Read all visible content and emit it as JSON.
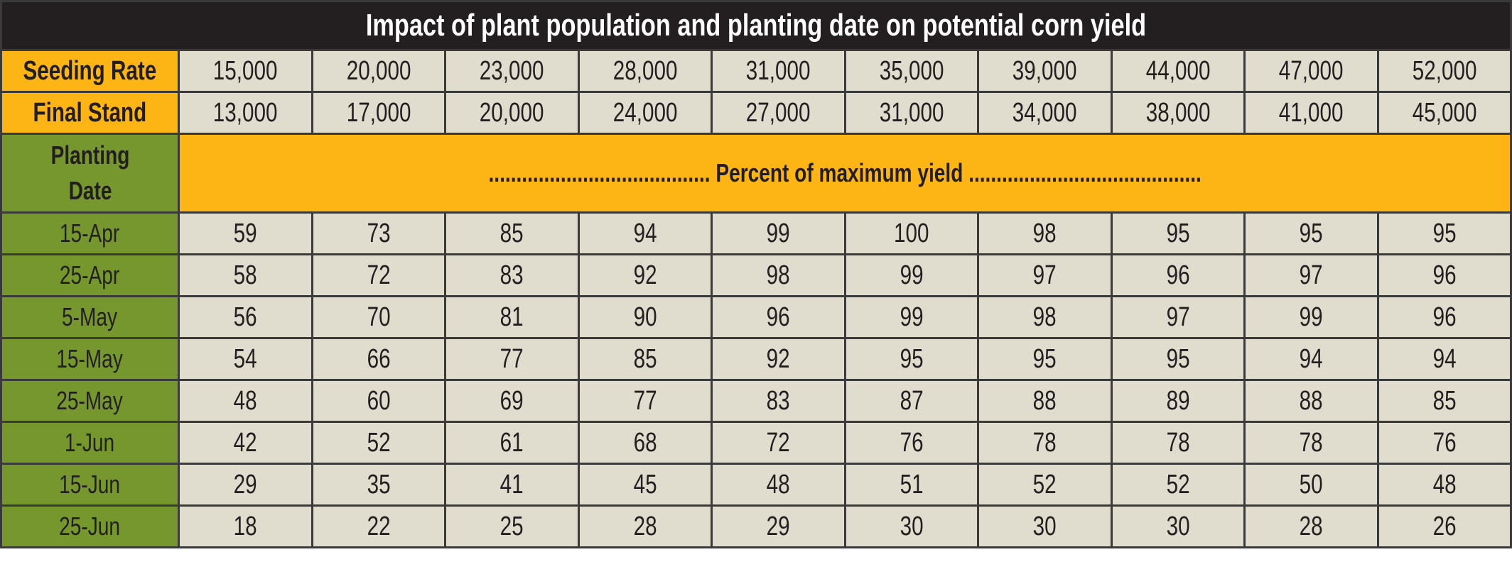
{
  "title": "Impact of plant population and planting date on potential corn yield",
  "seeding_rate": {
    "label": "Seeding Rate",
    "values": [
      "15,000",
      "20,000",
      "23,000",
      "28,000",
      "31,000",
      "35,000",
      "39,000",
      "44,000",
      "47,000",
      "52,000"
    ]
  },
  "final_stand": {
    "label": "Final Stand",
    "values": [
      "13,000",
      "17,000",
      "20,000",
      "24,000",
      "27,000",
      "31,000",
      "34,000",
      "38,000",
      "41,000",
      "45,000"
    ]
  },
  "planting_date_label": "Planting Date",
  "subheader": "........................................ Percent of maximum yield ..........................................",
  "rows": [
    {
      "date": "15-Apr",
      "values": [
        "59",
        "73",
        "85",
        "94",
        "99",
        "100",
        "98",
        "95",
        "95",
        "95"
      ]
    },
    {
      "date": "25-Apr",
      "values": [
        "58",
        "72",
        "83",
        "92",
        "98",
        "99",
        "97",
        "96",
        "97",
        "96"
      ]
    },
    {
      "date": "5-May",
      "values": [
        "56",
        "70",
        "81",
        "90",
        "96",
        "99",
        "98",
        "97",
        "99",
        "96"
      ]
    },
    {
      "date": "15-May",
      "values": [
        "54",
        "66",
        "77",
        "85",
        "92",
        "95",
        "95",
        "95",
        "94",
        "94"
      ]
    },
    {
      "date": "25-May",
      "values": [
        "48",
        "60",
        "69",
        "77",
        "83",
        "87",
        "88",
        "89",
        "88",
        "85"
      ]
    },
    {
      "date": "1-Jun",
      "values": [
        "42",
        "52",
        "61",
        "68",
        "72",
        "76",
        "78",
        "78",
        "78",
        "76"
      ]
    },
    {
      "date": "15-Jun",
      "values": [
        "29",
        "35",
        "41",
        "45",
        "48",
        "51",
        "52",
        "52",
        "50",
        "48"
      ]
    },
    {
      "date": "25-Jun",
      "values": [
        "18",
        "22",
        "25",
        "28",
        "29",
        "30",
        "30",
        "30",
        "28",
        "26"
      ]
    }
  ],
  "colors": {
    "title_bg": "#231f20",
    "header_bg": "#fdb515",
    "date_bg": "#76972d",
    "cell_bg": "#e0ddcf"
  }
}
